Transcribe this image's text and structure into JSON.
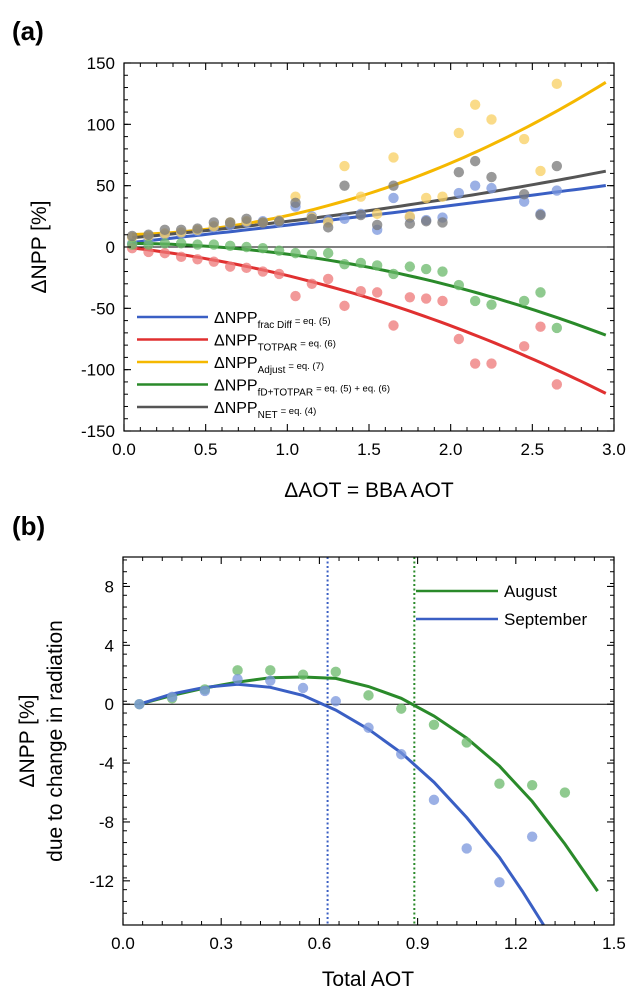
{
  "chart_data": [
    {
      "type": "scatter",
      "panel_label": "(a)",
      "xlabel": "ΔAOT = BBA AOT",
      "ylabel": "ΔNPP [%]",
      "xlim": [
        0,
        3.0
      ],
      "ylim": [
        -150,
        150
      ],
      "xticks": [
        "0.0",
        "0.5",
        "1.0",
        "1.5",
        "2.0",
        "2.5",
        "3.0"
      ],
      "xtick_values": [
        0,
        0.5,
        1.0,
        1.5,
        2.0,
        2.5,
        3.0
      ],
      "yticks": [
        "-150",
        "-100",
        "-50",
        "0",
        "50",
        "100",
        "150"
      ],
      "ytick_values": [
        -150,
        -100,
        -50,
        0,
        50,
        100,
        150
      ],
      "zero_line": true,
      "legend_position": "lower-left",
      "series": [
        {
          "key": "fracdiff",
          "legend_main": "ΔNPP",
          "legend_sub": "frac Diff",
          "legend_eq": "= eq. (5)",
          "color": "#3a5fc4",
          "point_color": "#7a96dc",
          "fit_coeffs": [
            3,
            14.2,
            0.6
          ],
          "points": [
            [
              0.05,
              3
            ],
            [
              0.15,
              6
            ],
            [
              0.25,
              10
            ],
            [
              0.35,
              11
            ],
            [
              0.45,
              13
            ],
            [
              0.55,
              16
            ],
            [
              0.65,
              18
            ],
            [
              0.75,
              20
            ],
            [
              0.85,
              21
            ],
            [
              0.95,
              20
            ],
            [
              1.05,
              33
            ],
            [
              1.15,
              25
            ],
            [
              1.25,
              22
            ],
            [
              1.35,
              23
            ],
            [
              1.45,
              27
            ],
            [
              1.55,
              14
            ],
            [
              1.65,
              40
            ],
            [
              1.75,
              24
            ],
            [
              1.85,
              22
            ],
            [
              1.95,
              24
            ],
            [
              2.05,
              44
            ],
            [
              2.15,
              50
            ],
            [
              2.25,
              48
            ],
            [
              2.45,
              37
            ],
            [
              2.55,
              27
            ],
            [
              2.65,
              46
            ]
          ]
        },
        {
          "key": "totpar",
          "legend_main": "ΔNPP",
          "legend_sub": "TOTPAR",
          "legend_eq": "= eq. (6)",
          "color": "#e03030",
          "point_color": "#ee7777",
          "fit_coeffs": [
            0,
            -14.5,
            -8.8
          ],
          "points": [
            [
              0.05,
              -1
            ],
            [
              0.15,
              -4
            ],
            [
              0.25,
              -5
            ],
            [
              0.35,
              -8
            ],
            [
              0.45,
              -10
            ],
            [
              0.55,
              -12
            ],
            [
              0.65,
              -16
            ],
            [
              0.75,
              -17
            ],
            [
              0.85,
              -20
            ],
            [
              0.95,
              -22
            ],
            [
              1.05,
              -40
            ],
            [
              1.15,
              -30
            ],
            [
              1.25,
              -26
            ],
            [
              1.35,
              -48
            ],
            [
              1.45,
              -36
            ],
            [
              1.55,
              -37
            ],
            [
              1.65,
              -64
            ],
            [
              1.75,
              -41
            ],
            [
              1.85,
              -42
            ],
            [
              1.95,
              -44
            ],
            [
              2.05,
              -75
            ],
            [
              2.15,
              -95
            ],
            [
              2.25,
              -95
            ],
            [
              2.45,
              -81
            ],
            [
              2.55,
              -65
            ],
            [
              2.65,
              -112
            ]
          ]
        },
        {
          "key": "adjust",
          "legend_main": "ΔNPP",
          "legend_sub": "Adjust",
          "legend_eq": "= eq. (7)",
          "color": "#f5b800",
          "point_color": "#f8cf60",
          "fit_coeffs": [
            10,
            2,
            13.6
          ],
          "points": [
            [
              0.05,
              8
            ],
            [
              0.15,
              9
            ],
            [
              0.25,
              11
            ],
            [
              0.35,
              12
            ],
            [
              0.45,
              14
            ],
            [
              0.55,
              17
            ],
            [
              0.65,
              20
            ],
            [
              0.75,
              21
            ],
            [
              0.85,
              20
            ],
            [
              0.95,
              22
            ],
            [
              1.05,
              41
            ],
            [
              1.15,
              24
            ],
            [
              1.25,
              20
            ],
            [
              1.35,
              66
            ],
            [
              1.45,
              41
            ],
            [
              1.55,
              27
            ],
            [
              1.65,
              73
            ],
            [
              1.75,
              25
            ],
            [
              1.85,
              40
            ],
            [
              1.95,
              41
            ],
            [
              2.05,
              93
            ],
            [
              2.15,
              116
            ],
            [
              2.25,
              104
            ],
            [
              2.45,
              88
            ],
            [
              2.55,
              62
            ],
            [
              2.65,
              133
            ]
          ]
        },
        {
          "key": "fdtotpar",
          "legend_main": "ΔNPP",
          "legend_sub": "fD+TOTPAR",
          "legend_eq": "= eq. (5) + eq. (6)",
          "color": "#2a8a2a",
          "point_color": "#6ab86a",
          "fit_coeffs": [
            3,
            -0.3,
            -8.5
          ],
          "points": [
            [
              0.05,
              2
            ],
            [
              0.15,
              2
            ],
            [
              0.25,
              3
            ],
            [
              0.35,
              3
            ],
            [
              0.45,
              2
            ],
            [
              0.55,
              2
            ],
            [
              0.65,
              1
            ],
            [
              0.75,
              0
            ],
            [
              0.85,
              -1
            ],
            [
              0.95,
              -3
            ],
            [
              1.05,
              -5
            ],
            [
              1.15,
              -6
            ],
            [
              1.25,
              -5
            ],
            [
              1.35,
              -14
            ],
            [
              1.45,
              -13
            ],
            [
              1.55,
              -15
            ],
            [
              1.65,
              -22
            ],
            [
              1.75,
              -16
            ],
            [
              1.85,
              -18
            ],
            [
              1.95,
              -20
            ],
            [
              2.05,
              -31
            ],
            [
              2.15,
              -44
            ],
            [
              2.25,
              -47
            ],
            [
              2.45,
              -44
            ],
            [
              2.55,
              -37
            ],
            [
              2.65,
              -66
            ]
          ]
        },
        {
          "key": "net",
          "legend_main": "ΔNPP",
          "legend_sub": "NET",
          "legend_eq": "= eq. (4)",
          "color": "#555555",
          "point_color": "#777777",
          "fit_coeffs": [
            7,
            11.5,
            2.4
          ],
          "points": [
            [
              0.05,
              9
            ],
            [
              0.15,
              10
            ],
            [
              0.25,
              14
            ],
            [
              0.35,
              14
            ],
            [
              0.45,
              15
            ],
            [
              0.55,
              20
            ],
            [
              0.65,
              20
            ],
            [
              0.75,
              23
            ],
            [
              0.85,
              20
            ],
            [
              0.95,
              21
            ],
            [
              1.05,
              36
            ],
            [
              1.15,
              23
            ],
            [
              1.25,
              16
            ],
            [
              1.35,
              50
            ],
            [
              1.45,
              26
            ],
            [
              1.55,
              18
            ],
            [
              1.65,
              50
            ],
            [
              1.75,
              19
            ],
            [
              1.85,
              21
            ],
            [
              1.95,
              20
            ],
            [
              2.05,
              61
            ],
            [
              2.15,
              70
            ],
            [
              2.25,
              57
            ],
            [
              2.45,
              43
            ],
            [
              2.55,
              26
            ],
            [
              2.65,
              66
            ]
          ]
        }
      ]
    },
    {
      "type": "scatter",
      "panel_label": "(b)",
      "xlabel": "Total AOT",
      "ylabel_line1": "ΔNPP [%]",
      "ylabel_line2": "due to change in radiation",
      "xlim": [
        0,
        1.5
      ],
      "ylim": [
        -15,
        10
      ],
      "xticks": [
        "0.0",
        "0.3",
        "0.6",
        "0.9",
        "1.2",
        "1.5"
      ],
      "xtick_values": [
        0,
        0.3,
        0.6,
        0.9,
        1.2,
        1.5
      ],
      "yticks": [
        "-12",
        "-8",
        "-4",
        "0",
        "4",
        "8"
      ],
      "ytick_values": [
        -12,
        -8,
        -4,
        0,
        4,
        8
      ],
      "zero_line": true,
      "legend_position": "top-right",
      "vlines": [
        {
          "x": 0.625,
          "color": "#3a5fc4"
        },
        {
          "x": 0.89,
          "color": "#2a8a2a"
        }
      ],
      "series": [
        {
          "name": "August",
          "color": "#2a8a2a",
          "point_color": "#6ab86a",
          "curve": [
            [
              0.05,
              0
            ],
            [
              0.15,
              0.6
            ],
            [
              0.25,
              1.1
            ],
            [
              0.35,
              1.5
            ],
            [
              0.45,
              1.8
            ],
            [
              0.55,
              1.85
            ],
            [
              0.65,
              1.75
            ],
            [
              0.75,
              1.2
            ],
            [
              0.85,
              0.4
            ],
            [
              0.95,
              -0.8
            ],
            [
              1.05,
              -2.3
            ],
            [
              1.15,
              -4.2
            ],
            [
              1.25,
              -6.6
            ],
            [
              1.35,
              -9.5
            ],
            [
              1.45,
              -12.7
            ]
          ],
          "points": [
            [
              0.05,
              0
            ],
            [
              0.15,
              0.4
            ],
            [
              0.25,
              1.0
            ],
            [
              0.35,
              2.3
            ],
            [
              0.45,
              2.3
            ],
            [
              0.55,
              2.0
            ],
            [
              0.65,
              2.2
            ],
            [
              0.75,
              0.6
            ],
            [
              0.85,
              -0.3
            ],
            [
              0.95,
              -1.4
            ],
            [
              1.05,
              -2.6
            ],
            [
              1.15,
              -5.4
            ],
            [
              1.25,
              -5.5
            ],
            [
              1.35,
              -6.0
            ]
          ]
        },
        {
          "name": "September",
          "color": "#3a5fc4",
          "point_color": "#7a96dc",
          "curve": [
            [
              0.05,
              0
            ],
            [
              0.15,
              0.7
            ],
            [
              0.25,
              1.15
            ],
            [
              0.35,
              1.35
            ],
            [
              0.45,
              1.15
            ],
            [
              0.55,
              0.6
            ],
            [
              0.65,
              -0.4
            ],
            [
              0.75,
              -1.7
            ],
            [
              0.85,
              -3.3
            ],
            [
              0.95,
              -5.3
            ],
            [
              1.05,
              -7.7
            ],
            [
              1.15,
              -10.4
            ],
            [
              1.22,
              -12.7
            ],
            [
              1.285,
              -15
            ]
          ],
          "points": [
            [
              0.05,
              0
            ],
            [
              0.15,
              0.5
            ],
            [
              0.25,
              0.9
            ],
            [
              0.35,
              1.7
            ],
            [
              0.45,
              1.6
            ],
            [
              0.55,
              1.1
            ],
            [
              0.65,
              0.2
            ],
            [
              0.75,
              -1.6
            ],
            [
              0.85,
              -3.4
            ],
            [
              0.95,
              -6.5
            ],
            [
              1.05,
              -9.8
            ],
            [
              1.15,
              -12.1
            ],
            [
              1.25,
              -9.0
            ]
          ]
        }
      ]
    }
  ]
}
